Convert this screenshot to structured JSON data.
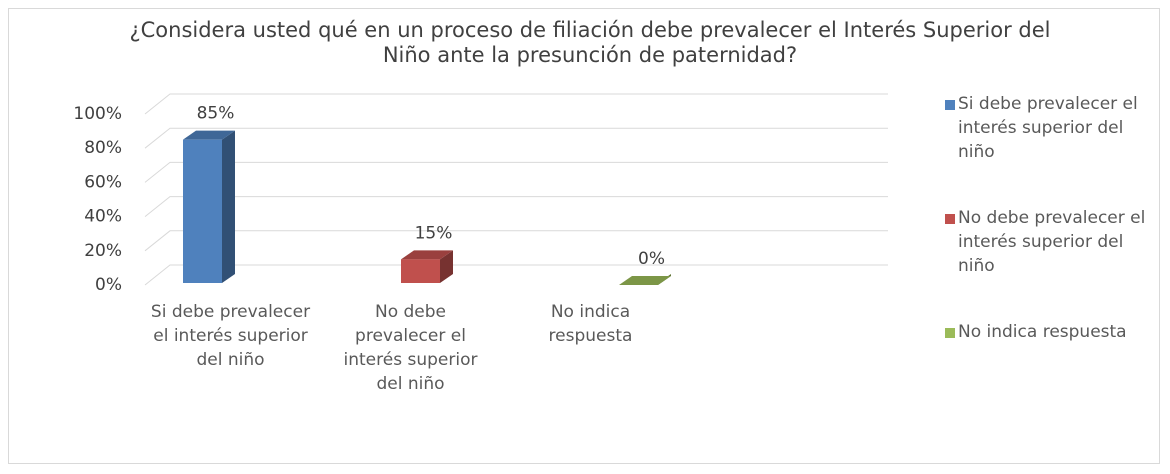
{
  "chart_data": {
    "type": "bar3d",
    "title": "¿Considera usted qué en un proceso de filiación debe prevalecer el Interés Superior del Niño ante la presunción de paternidad?",
    "categories": [
      "Si debe prevalecer el interés superior del niño",
      "No debe prevalecer el interés superior del niño",
      "No indica respuesta"
    ],
    "values": [
      85,
      15,
      0
    ],
    "value_labels": [
      "85%",
      "15%",
      "0%"
    ],
    "colors": [
      "#4f81bd",
      "#c0504d",
      "#9bbb59"
    ],
    "ylim": [
      0,
      100
    ],
    "yticks": [
      {
        "value": 0,
        "label": "0%"
      },
      {
        "value": 20,
        "label": "20%"
      },
      {
        "value": 40,
        "label": "40%"
      },
      {
        "value": 60,
        "label": "60%"
      },
      {
        "value": 80,
        "label": "80%"
      },
      {
        "value": 100,
        "label": "100%"
      }
    ],
    "grid": true,
    "legend": "right"
  }
}
